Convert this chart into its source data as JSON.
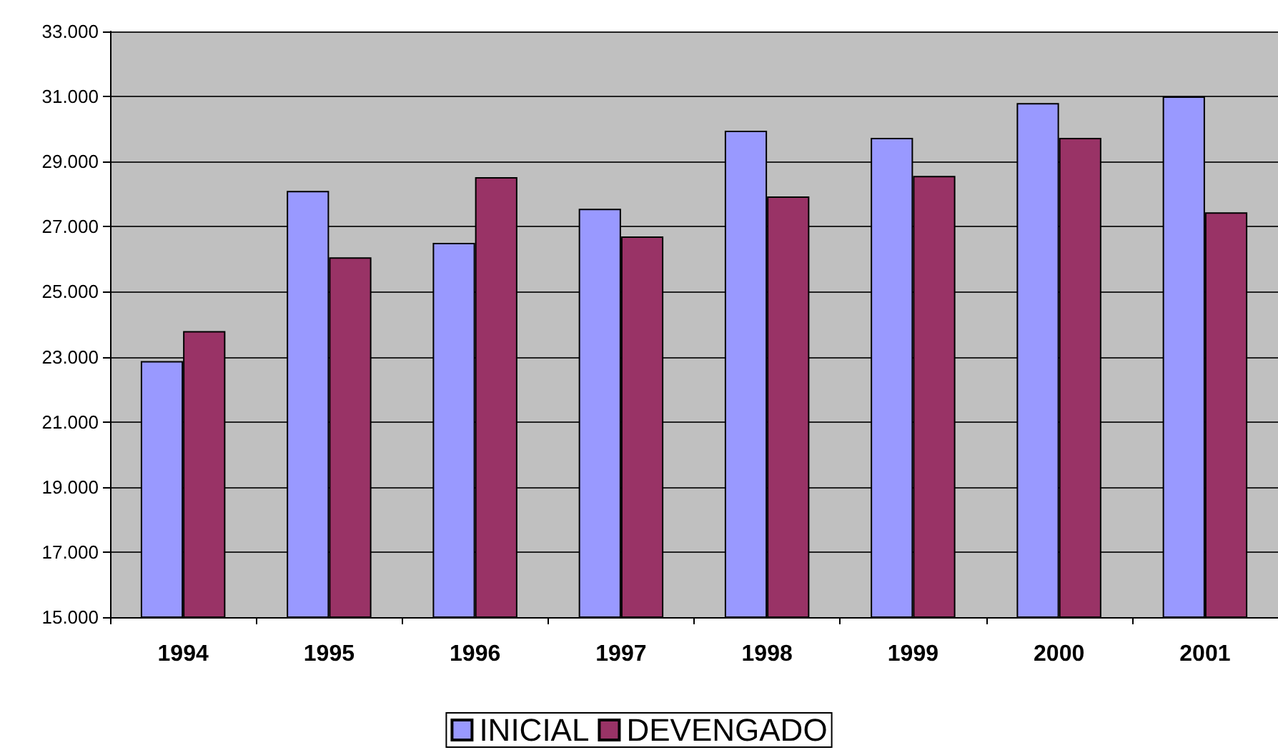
{
  "chart_data": {
    "type": "bar",
    "categories": [
      "1994",
      "1995",
      "1996",
      "1997",
      "1998",
      "1999",
      "2000",
      "2001"
    ],
    "series": [
      {
        "name": "INICIAL",
        "color": "#9999ff",
        "values": [
          22870,
          28100,
          26500,
          27550,
          29950,
          29730,
          30800,
          31000
        ]
      },
      {
        "name": "DEVENGADO",
        "color": "#993366",
        "values": [
          23790,
          26060,
          28520,
          26700,
          27930,
          28560,
          29730,
          27440
        ]
      }
    ],
    "ylim": [
      15000,
      33000
    ],
    "yticks": [
      {
        "value": 15000,
        "label": "15.000"
      },
      {
        "value": 17000,
        "label": "17.000"
      },
      {
        "value": 19000,
        "label": "19.000"
      },
      {
        "value": 21000,
        "label": "21.000"
      },
      {
        "value": 23000,
        "label": "23.000"
      },
      {
        "value": 25000,
        "label": "25.000"
      },
      {
        "value": 27000,
        "label": "27.000"
      },
      {
        "value": 29000,
        "label": "29.000"
      },
      {
        "value": 31000,
        "label": "31.000"
      },
      {
        "value": 33000,
        "label": "33.000"
      }
    ],
    "grid": "y",
    "legend": "bottom"
  }
}
